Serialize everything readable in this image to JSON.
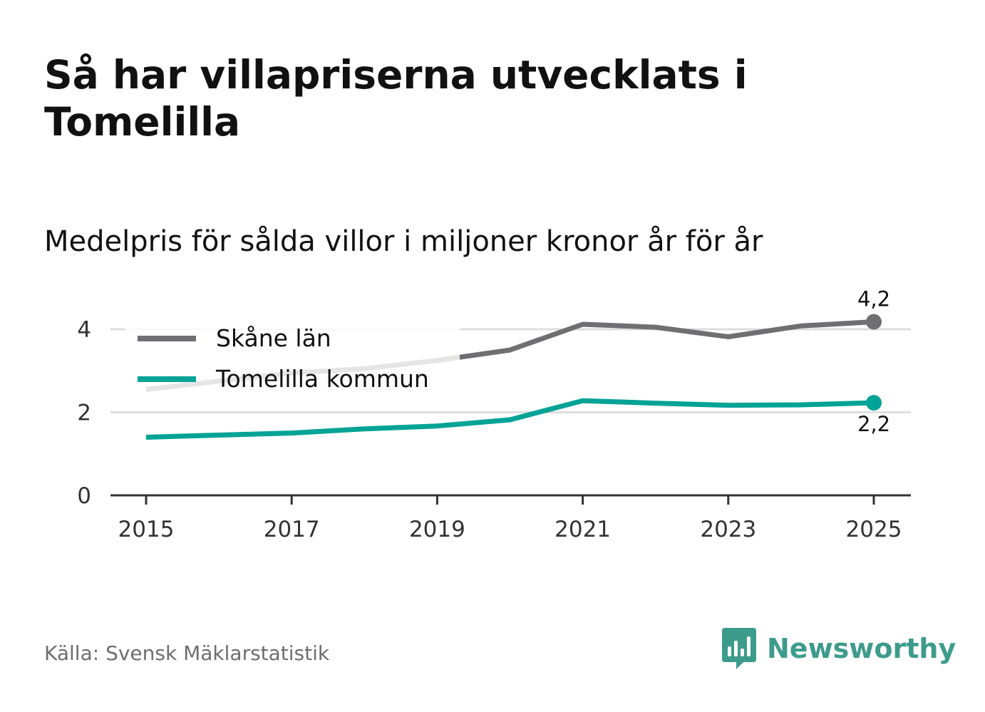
{
  "header": {
    "title": "Så har villapriserna utvecklats i Tomelilla",
    "subtitle": "Medelpris för sålda villor i miljoner kronor år för år"
  },
  "footer": {
    "source": "Källa: Svensk Mäklarstatistik",
    "brand": "Newsworthy",
    "brand_icon": "bar-chart-speech-bubble-icon",
    "brand_color": "#3d9b8c"
  },
  "chart_data": {
    "type": "line",
    "title": "Så har villapriserna utvecklats i Tomelilla",
    "subtitle": "Medelpris för sålda villor i miljoner kronor år för år",
    "xlabel": "",
    "ylabel": "",
    "x": [
      2015,
      2016,
      2017,
      2018,
      2019,
      2020,
      2021,
      2022,
      2023,
      2024,
      2025
    ],
    "x_ticks": [
      "2015",
      "2017",
      "2019",
      "2021",
      "2023",
      "2025"
    ],
    "y_ticks": [
      "0",
      "2",
      "4"
    ],
    "ylim": [
      0,
      4.6
    ],
    "grid": true,
    "legend_position": "top-left",
    "series": [
      {
        "name": "Skåne län",
        "color": "#6f6f73",
        "values": [
          2.55,
          2.75,
          2.95,
          3.05,
          3.25,
          3.5,
          4.12,
          4.05,
          3.82,
          4.08,
          4.18
        ],
        "end_label": "4,2"
      },
      {
        "name": "Tomelilla kommun",
        "color": "#00a396",
        "values": [
          1.4,
          1.45,
          1.5,
          1.6,
          1.67,
          1.82,
          2.28,
          2.22,
          2.17,
          2.18,
          2.23
        ],
        "end_label": "2,2"
      }
    ]
  }
}
